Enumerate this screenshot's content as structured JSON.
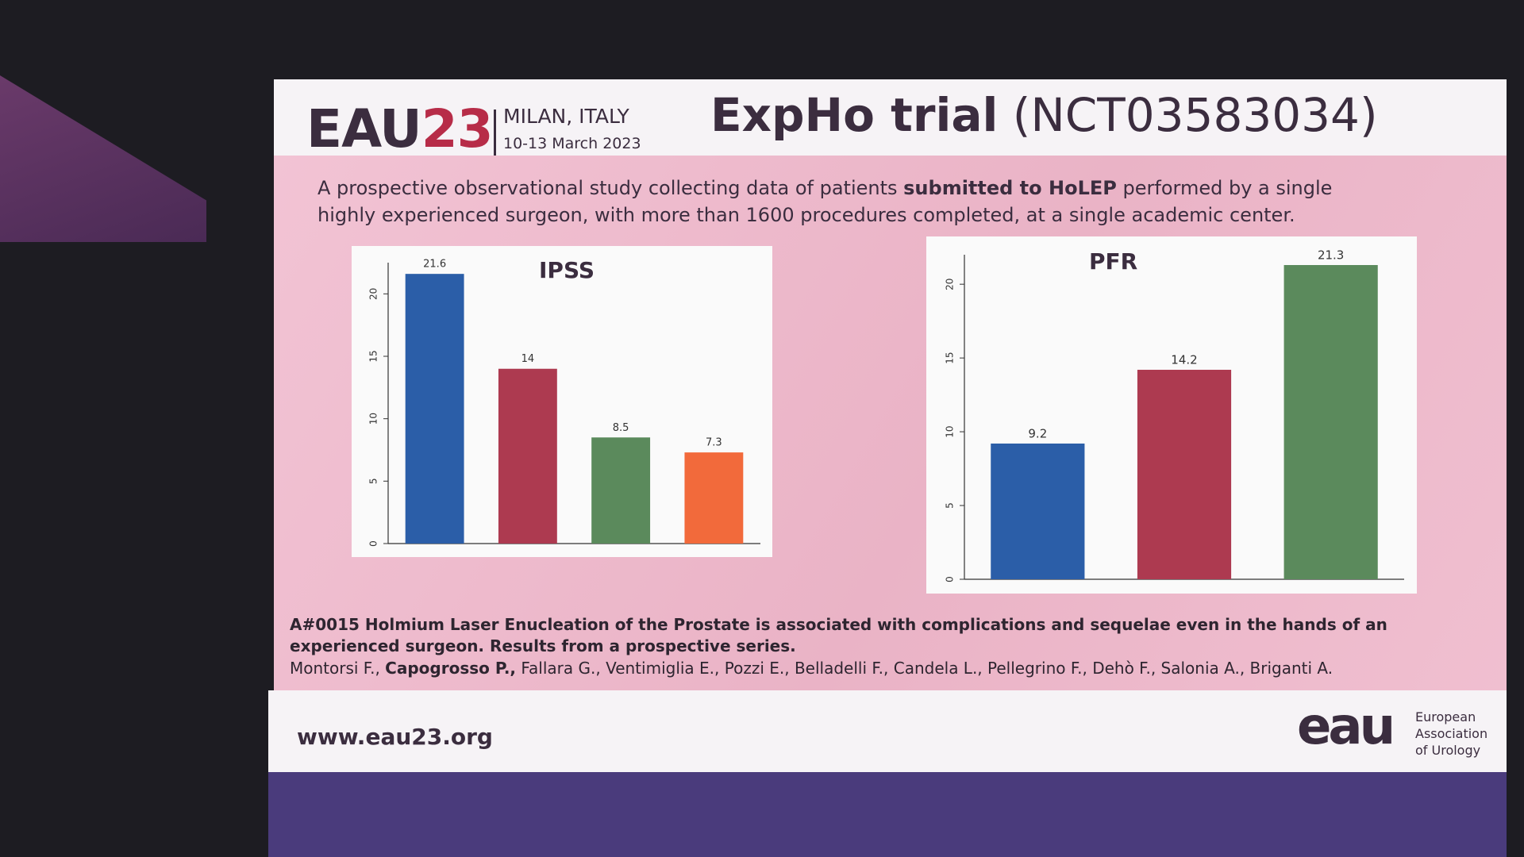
{
  "header": {
    "logo_text": "EAU",
    "logo_number": "23",
    "location": "MILAN, ITALY",
    "dates": "10-13 March 2023",
    "title_bold": "ExpHo trial",
    "title_rest": "(NCT03583034)"
  },
  "intro": {
    "before": "A prospective observational study collecting data of patients",
    "bold": "submitted to HoLEP",
    "after": "performed by a single highly experienced surgeon, with more than 1600 procedures completed, at a single academic center."
  },
  "chart_data": [
    {
      "type": "bar",
      "title": "IPSS",
      "categories": [
        null,
        null,
        null,
        null
      ],
      "values": [
        21.6,
        14,
        8.5,
        7.3
      ],
      "colors": [
        "#2b5ea8",
        "#ad3a50",
        "#5b8a5c",
        "#f26a3b"
      ],
      "ylim": [
        0,
        22.5
      ],
      "yticks": [
        0,
        5,
        10,
        15,
        20
      ]
    },
    {
      "type": "bar",
      "title": "PFR",
      "categories": [
        null,
        null,
        null
      ],
      "values": [
        9.2,
        14.2,
        21.3
      ],
      "colors": [
        "#2b5ea8",
        "#ad3a50",
        "#5b8a5c"
      ],
      "ylim": [
        0,
        22
      ],
      "yticks": [
        0,
        5,
        10,
        15,
        20
      ]
    }
  ],
  "citation": {
    "title": "A#0015 Holmium Laser Enucleation of the Prostate is associated with complications and sequelae even in the hands of an experienced surgeon. Results from a prospective series.",
    "author_first": "Montorsi F.,",
    "author_bold": "Capogrosso P.,",
    "authors_rest": "Fallara G., Ventimiglia E., Pozzi E., Belladelli F., Candela L., Pellegrino F., Dehò F., Salonia A., Briganti A."
  },
  "footer": {
    "url": "www.eau23.org",
    "eau_mark": "eau",
    "eau_line1": "European",
    "eau_line2": "Association",
    "eau_line3": "of Urology"
  }
}
